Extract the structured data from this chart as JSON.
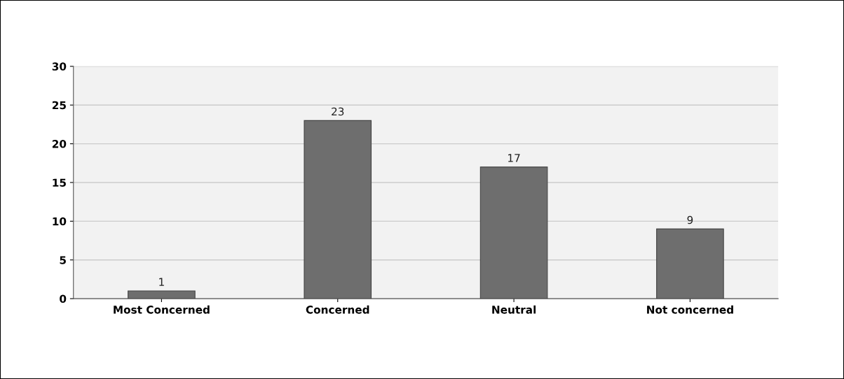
{
  "chart_data": {
    "type": "bar",
    "categories": [
      "Most Concerned",
      "Concerned",
      "Neutral",
      "Not concerned"
    ],
    "values": [
      1,
      23,
      17,
      9
    ],
    "color": "#6e6e6e",
    "ylim": [
      0,
      30
    ],
    "yticks": [
      0,
      5,
      10,
      15,
      20,
      25,
      30
    ],
    "grid": "y",
    "data_labels": true
  }
}
